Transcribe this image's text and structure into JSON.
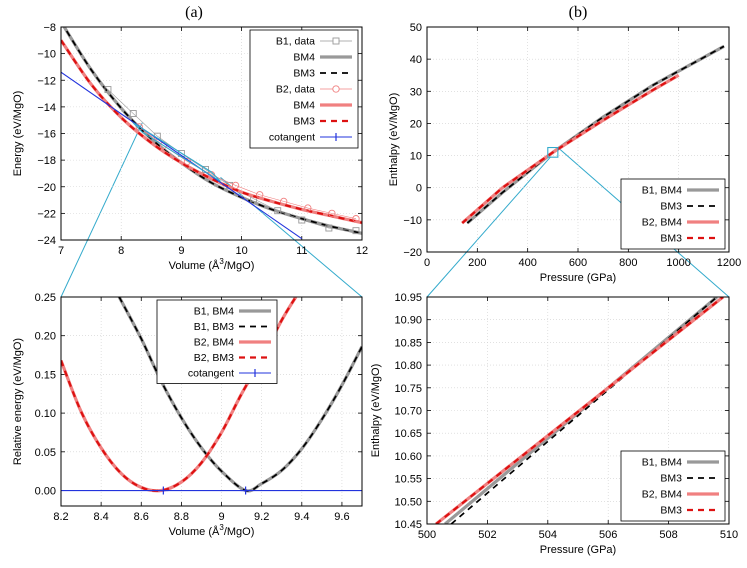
{
  "colors": {
    "gray": "#999999",
    "black": "#000000",
    "red": "#dd1111",
    "salmon": "#f08080",
    "blue": "#2233dd",
    "zoom": "#33aacc"
  },
  "panel_labels": [
    "(a)",
    "(b)"
  ],
  "chart_data": [
    {
      "id": "energy-volume",
      "type": "line",
      "title": "",
      "xlabel": "Volume (Å³/MgO)",
      "ylabel": "Energy (eV/MgO)",
      "xlim": [
        7,
        12
      ],
      "ylim": [
        -24,
        -8
      ],
      "xticks": [
        7,
        8,
        9,
        10,
        11,
        12
      ],
      "yticks": [
        -24,
        -22,
        -20,
        -18,
        -16,
        -14,
        -12,
        -10,
        -8
      ],
      "grid": true,
      "legend_position": "top-right",
      "legend": [
        "B1, data",
        "BM4",
        "BM3",
        "B2, data",
        "BM4",
        "BM3",
        "cotangent"
      ],
      "series": [
        {
          "name": "B1, BM4",
          "x": [
            7,
            7.5,
            8,
            8.5,
            9,
            9.5,
            10,
            10.5,
            11,
            11.5,
            12
          ],
          "y": [
            -7.6,
            -11.2,
            -14.1,
            -16.4,
            -18.2,
            -19.7,
            -20.8,
            -21.7,
            -22.4,
            -23.0,
            -23.5
          ]
        },
        {
          "name": "B1, BM3",
          "x": [
            7,
            7.5,
            8,
            8.5,
            9,
            9.5,
            10,
            10.5,
            11,
            11.5,
            12
          ],
          "y": [
            -7.6,
            -11.2,
            -14.1,
            -16.4,
            -18.2,
            -19.7,
            -20.8,
            -21.7,
            -22.4,
            -23.0,
            -23.5
          ]
        },
        {
          "name": "B1, data",
          "x": [
            7.78,
            8.2,
            8.6,
            9.0,
            9.4,
            9.8,
            10.2,
            10.6,
            11.0,
            11.45,
            11.9
          ],
          "y": [
            -12.7,
            -14.5,
            -16.2,
            -17.5,
            -18.7,
            -19.9,
            -20.9,
            -21.8,
            -22.5,
            -23.1,
            -23.3
          ]
        },
        {
          "name": "B2, BM4",
          "x": [
            7,
            7.5,
            8,
            8.5,
            9,
            9.5,
            10,
            10.5,
            11,
            11.5,
            12
          ],
          "y": [
            -9.0,
            -12.3,
            -14.8,
            -16.7,
            -18.2,
            -19.4,
            -20.4,
            -21.1,
            -21.7,
            -22.2,
            -22.7
          ]
        },
        {
          "name": "B2, BM3",
          "x": [
            7,
            7.5,
            8,
            8.5,
            9,
            9.5,
            10,
            10.5,
            11,
            11.5,
            12
          ],
          "y": [
            -9.0,
            -12.3,
            -14.8,
            -16.7,
            -18.2,
            -19.4,
            -20.4,
            -21.1,
            -21.7,
            -22.2,
            -22.7
          ]
        },
        {
          "name": "B2, data",
          "x": [
            8.3,
            8.7,
            9.1,
            9.5,
            9.9,
            10.3,
            10.7,
            11.1,
            11.5,
            11.9
          ],
          "y": [
            -15.5,
            -16.9,
            -18.1,
            -19.1,
            -19.9,
            -20.6,
            -21.1,
            -21.6,
            -22.0,
            -22.4
          ],
          "markers": [
            "x>=10"
          ]
        },
        {
          "name": "cotangent",
          "x": [
            7,
            11
          ],
          "y": [
            -11.4,
            -23.9
          ]
        }
      ]
    },
    {
      "id": "enthalpy-pressure",
      "type": "line",
      "xlabel": "Pressure (GPa)",
      "ylabel": "Enthalpy (eV/MgO)",
      "xlim": [
        0,
        1200
      ],
      "ylim": [
        -20,
        50
      ],
      "xticks": [
        0,
        200,
        400,
        600,
        800,
        1000,
        1200
      ],
      "yticks": [
        -20,
        -10,
        0,
        10,
        20,
        30,
        40,
        50
      ],
      "grid": true,
      "legend_position": "bottom-right",
      "legend": [
        "B1, BM4",
        "BM3",
        "B2, BM4",
        "BM3"
      ],
      "series": [
        {
          "name": "B1, BM4",
          "x": [
            160,
            300,
            500,
            700,
            900,
            1180
          ],
          "y": [
            -11,
            -1.5,
            11,
            22,
            32,
            44
          ]
        },
        {
          "name": "B1, BM3",
          "x": [
            160,
            300,
            500,
            700,
            900,
            1180
          ],
          "y": [
            -11,
            -1.5,
            11,
            22,
            32,
            44
          ]
        },
        {
          "name": "B2, BM4",
          "x": [
            140,
            300,
            500,
            700,
            900,
            1000
          ],
          "y": [
            -11,
            0,
            11,
            21,
            30.5,
            35
          ]
        },
        {
          "name": "B2, BM3",
          "x": [
            140,
            300,
            500,
            700,
            900,
            1000
          ],
          "y": [
            -11,
            0,
            11,
            21,
            30.5,
            35
          ]
        }
      ]
    },
    {
      "id": "relative-energy",
      "type": "line",
      "xlabel": "Volume (Å³/MgO)",
      "ylabel": "Relative energy (eV/MgO)",
      "xlim": [
        8.2,
        9.7
      ],
      "ylim": [
        -0.02,
        0.25
      ],
      "xticks": [
        8.2,
        8.4,
        8.6,
        8.8,
        9,
        9.2,
        9.4,
        9.6
      ],
      "yticks": [
        0,
        0.05,
        0.1,
        0.15,
        0.2,
        0.25
      ],
      "ytick_labels": [
        "0.00",
        "0.05",
        "0.10",
        "0.15",
        "0.20",
        "0.25"
      ],
      "grid": true,
      "legend_position": "top-center",
      "legend": [
        "B1, BM4",
        "B1, BM3",
        "B2, BM4",
        "B2, BM3",
        "cotangent"
      ],
      "series": [
        {
          "name": "B1, BM4",
          "x": [
            8.49,
            8.6,
            8.7,
            8.8,
            8.9,
            9.0,
            9.12,
            9.2,
            9.3,
            9.4,
            9.5,
            9.6,
            9.7
          ],
          "y": [
            0.25,
            0.196,
            0.141,
            0.094,
            0.055,
            0.025,
            0.0,
            0.009,
            0.026,
            0.054,
            0.092,
            0.136,
            0.186
          ]
        },
        {
          "name": "B1, BM3",
          "x": [
            8.49,
            8.6,
            8.7,
            8.8,
            8.9,
            9.0,
            9.12,
            9.2,
            9.3,
            9.4,
            9.5,
            9.6,
            9.7
          ],
          "y": [
            0.25,
            0.196,
            0.141,
            0.094,
            0.055,
            0.025,
            0.0,
            0.009,
            0.026,
            0.054,
            0.092,
            0.136,
            0.186
          ]
        },
        {
          "name": "B2, BM4",
          "x": [
            8.2,
            8.3,
            8.4,
            8.5,
            8.6,
            8.7,
            8.8,
            8.9,
            9.0,
            9.1,
            9.2,
            9.3,
            9.37
          ],
          "y": [
            0.168,
            0.102,
            0.055,
            0.022,
            0.004,
            0.0,
            0.011,
            0.036,
            0.075,
            0.125,
            0.17,
            0.22,
            0.25
          ]
        },
        {
          "name": "B2, BM3",
          "x": [
            8.2,
            8.3,
            8.4,
            8.5,
            8.6,
            8.7,
            8.8,
            8.9,
            9.0,
            9.1,
            9.2,
            9.3,
            9.37
          ],
          "y": [
            0.168,
            0.102,
            0.055,
            0.022,
            0.004,
            0.0,
            0.011,
            0.036,
            0.075,
            0.125,
            0.17,
            0.22,
            0.25
          ]
        },
        {
          "name": "cotangent",
          "x": [
            8.2,
            8.71,
            9.12,
            9.7
          ],
          "y": [
            0,
            0,
            0,
            0
          ]
        }
      ]
    },
    {
      "id": "enthalpy-zoom",
      "type": "line",
      "xlabel": "Pressure (GPa)",
      "ylabel": "Enthalpy (eV/MgO)",
      "xlim": [
        500,
        510
      ],
      "ylim": [
        10.45,
        10.95
      ],
      "xticks": [
        500,
        502,
        504,
        506,
        508,
        510
      ],
      "yticks": [
        10.45,
        10.5,
        10.55,
        10.6,
        10.65,
        10.7,
        10.75,
        10.8,
        10.85,
        10.9,
        10.95
      ],
      "ytick_labels": [
        "10.45",
        "10.50",
        "10.55",
        "10.60",
        "10.65",
        "10.70",
        "10.75",
        "10.80",
        "10.85",
        "10.90",
        "10.95"
      ],
      "grid": true,
      "legend_position": "bottom-right",
      "legend": [
        "B1, BM4",
        "BM3",
        "B2, BM4",
        "BM3"
      ],
      "series": [
        {
          "name": "B1, BM4",
          "x": [
            500.6,
            509.6
          ],
          "y": [
            10.45,
            10.95
          ]
        },
        {
          "name": "B1, BM3",
          "x": [
            500.8,
            509.6
          ],
          "y": [
            10.45,
            10.95
          ]
        },
        {
          "name": "B2, BM4",
          "x": [
            500.3,
            509.8
          ],
          "y": [
            10.45,
            10.95
          ]
        },
        {
          "name": "B2, BM3",
          "x": [
            500.3,
            509.8
          ],
          "y": [
            10.45,
            10.95
          ]
        }
      ]
    }
  ]
}
